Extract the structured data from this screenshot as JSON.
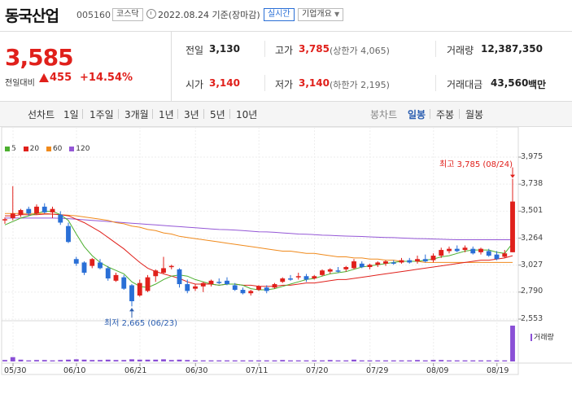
{
  "header": {
    "name": "동국산업",
    "code": "005160",
    "market": "코스닥",
    "date": "2022.08.24 기준(장마감)",
    "realtime": "실시간",
    "company_info": "기업개요"
  },
  "price": {
    "current": "3,585",
    "change_label": "전일대비",
    "change_amount": "455",
    "change_rate": "+14.54%"
  },
  "quote": {
    "prev_label": "전일",
    "prev_value": "3,130",
    "high_label": "고가",
    "high_value": "3,785",
    "upper_limit": "(상한가 4,065)",
    "volume_label": "거래량",
    "volume_value": "12,387,350",
    "open_label": "시가",
    "open_value": "3,140",
    "low_label": "저가",
    "low_value": "3,140",
    "lower_limit": "(하한가 2,195)",
    "amount_label": "거래대금",
    "amount_value": "43,560",
    "amount_unit": "백만"
  },
  "toolbar": {
    "line_chart": "선차트",
    "periods": [
      "1일",
      "1주일",
      "3개월",
      "1년",
      "3년",
      "5년",
      "10년"
    ],
    "candle_chart": "봉차트",
    "candle_periods": [
      "일봉",
      "주봉",
      "월봉"
    ],
    "selected_candle": "일봉"
  },
  "chart_data": {
    "type": "candlestick",
    "legend": [
      {
        "name": "5",
        "color": "#4caf2f"
      },
      {
        "name": "20",
        "color": "#e0201b"
      },
      {
        "name": "60",
        "color": "#f08a1c"
      },
      {
        "name": "120",
        "color": "#9457d6"
      }
    ],
    "y_ticks": [
      "3,975",
      "3,738",
      "3,501",
      "3,264",
      "3,027",
      "2,790",
      "2,553"
    ],
    "ylim": [
      2553,
      3975
    ],
    "x_ticks": [
      "05/30",
      "06/10",
      "06/21",
      "06/30",
      "07/11",
      "07/20",
      "07/29",
      "08/09",
      "08/19"
    ],
    "max_note": "최고 3,785 (08/24)",
    "min_note": "최저 2,665 (06/23)",
    "volume_label": "거래량",
    "candles": [
      {
        "o": 3420,
        "h": 3445,
        "l": 3390,
        "c": 3430
      },
      {
        "o": 3440,
        "h": 3720,
        "l": 3420,
        "c": 3480
      },
      {
        "o": 3470,
        "h": 3520,
        "l": 3450,
        "c": 3510
      },
      {
        "o": 3520,
        "h": 3540,
        "l": 3460,
        "c": 3480
      },
      {
        "o": 3480,
        "h": 3560,
        "l": 3470,
        "c": 3540
      },
      {
        "o": 3540,
        "h": 3570,
        "l": 3480,
        "c": 3490
      },
      {
        "o": 3490,
        "h": 3540,
        "l": 3440,
        "c": 3520
      },
      {
        "o": 3470,
        "h": 3500,
        "l": 3380,
        "c": 3400
      },
      {
        "o": 3370,
        "h": 3400,
        "l": 3220,
        "c": 3230
      },
      {
        "o": 3080,
        "h": 3100,
        "l": 3020,
        "c": 3040
      },
      {
        "o": 3050,
        "h": 3060,
        "l": 2940,
        "c": 2960
      },
      {
        "o": 3020,
        "h": 3090,
        "l": 3000,
        "c": 3080
      },
      {
        "o": 3050,
        "h": 3080,
        "l": 2990,
        "c": 3000
      },
      {
        "o": 3000,
        "h": 3020,
        "l": 2890,
        "c": 2910
      },
      {
        "o": 2890,
        "h": 2960,
        "l": 2880,
        "c": 2940
      },
      {
        "o": 2920,
        "h": 2940,
        "l": 2810,
        "c": 2820
      },
      {
        "o": 2850,
        "h": 2860,
        "l": 2665,
        "c": 2710
      },
      {
        "o": 2760,
        "h": 2900,
        "l": 2750,
        "c": 2870
      },
      {
        "o": 2800,
        "h": 2940,
        "l": 2790,
        "c": 2920
      },
      {
        "o": 2930,
        "h": 2990,
        "l": 2880,
        "c": 2980
      },
      {
        "o": 2960,
        "h": 3100,
        "l": 2950,
        "c": 3000
      },
      {
        "o": 3010,
        "h": 3030,
        "l": 2990,
        "c": 3020
      },
      {
        "o": 2990,
        "h": 3000,
        "l": 2830,
        "c": 2860
      },
      {
        "o": 2860,
        "h": 2900,
        "l": 2780,
        "c": 2800
      },
      {
        "o": 2820,
        "h": 2860,
        "l": 2800,
        "c": 2840
      },
      {
        "o": 2840,
        "h": 2880,
        "l": 2790,
        "c": 2870
      },
      {
        "o": 2860,
        "h": 2900,
        "l": 2840,
        "c": 2890
      },
      {
        "o": 2880,
        "h": 2910,
        "l": 2860,
        "c": 2870
      },
      {
        "o": 2890,
        "h": 2920,
        "l": 2850,
        "c": 2860
      },
      {
        "o": 2850,
        "h": 2870,
        "l": 2800,
        "c": 2810
      },
      {
        "o": 2810,
        "h": 2830,
        "l": 2770,
        "c": 2780
      },
      {
        "o": 2780,
        "h": 2810,
        "l": 2760,
        "c": 2800
      },
      {
        "o": 2810,
        "h": 2850,
        "l": 2800,
        "c": 2840
      },
      {
        "o": 2830,
        "h": 2850,
        "l": 2780,
        "c": 2800
      },
      {
        "o": 2830,
        "h": 2870,
        "l": 2820,
        "c": 2860
      },
      {
        "o": 2880,
        "h": 2920,
        "l": 2870,
        "c": 2910
      },
      {
        "o": 2910,
        "h": 2940,
        "l": 2890,
        "c": 2900
      },
      {
        "o": 2920,
        "h": 2960,
        "l": 2900,
        "c": 2930
      },
      {
        "o": 2930,
        "h": 2950,
        "l": 2880,
        "c": 2900
      },
      {
        "o": 2910,
        "h": 2940,
        "l": 2900,
        "c": 2930
      },
      {
        "o": 2940,
        "h": 2990,
        "l": 2930,
        "c": 2980
      },
      {
        "o": 2970,
        "h": 3000,
        "l": 2950,
        "c": 2990
      },
      {
        "o": 2980,
        "h": 3010,
        "l": 2960,
        "c": 2970
      },
      {
        "o": 2990,
        "h": 3020,
        "l": 2970,
        "c": 3010
      },
      {
        "o": 3000,
        "h": 3080,
        "l": 2990,
        "c": 3060
      },
      {
        "o": 3040,
        "h": 3060,
        "l": 3000,
        "c": 3010
      },
      {
        "o": 3010,
        "h": 3040,
        "l": 2990,
        "c": 3030
      },
      {
        "o": 3030,
        "h": 3060,
        "l": 3010,
        "c": 3050
      },
      {
        "o": 3040,
        "h": 3070,
        "l": 3020,
        "c": 3060
      },
      {
        "o": 3050,
        "h": 3070,
        "l": 3030,
        "c": 3040
      },
      {
        "o": 3050,
        "h": 3090,
        "l": 3040,
        "c": 3070
      },
      {
        "o": 3070,
        "h": 3090,
        "l": 3040,
        "c": 3050
      },
      {
        "o": 3060,
        "h": 3110,
        "l": 3040,
        "c": 3080
      },
      {
        "o": 3080,
        "h": 3120,
        "l": 3050,
        "c": 3060
      },
      {
        "o": 3070,
        "h": 3130,
        "l": 3050,
        "c": 3110
      },
      {
        "o": 3110,
        "h": 3180,
        "l": 3090,
        "c": 3160
      },
      {
        "o": 3150,
        "h": 3190,
        "l": 3130,
        "c": 3170
      },
      {
        "o": 3170,
        "h": 3200,
        "l": 3140,
        "c": 3150
      },
      {
        "o": 3160,
        "h": 3200,
        "l": 3140,
        "c": 3180
      },
      {
        "o": 3170,
        "h": 3190,
        "l": 3120,
        "c": 3130
      },
      {
        "o": 3140,
        "h": 3180,
        "l": 3120,
        "c": 3170
      },
      {
        "o": 3150,
        "h": 3170,
        "l": 3100,
        "c": 3110
      },
      {
        "o": 3120,
        "h": 3150,
        "l": 3070,
        "c": 3080
      },
      {
        "o": 3100,
        "h": 3160,
        "l": 3090,
        "c": 3130
      },
      {
        "o": 3140,
        "h": 3785,
        "l": 3140,
        "c": 3585
      }
    ],
    "ma5": [
      3380,
      3410,
      3440,
      3460,
      3480,
      3500,
      3500,
      3470,
      3420,
      3300,
      3190,
      3110,
      3050,
      3010,
      2980,
      2950,
      2880,
      2840,
      2830,
      2860,
      2900,
      2930,
      2940,
      2930,
      2900,
      2880,
      2860,
      2850,
      2860,
      2860,
      2850,
      2820,
      2810,
      2810,
      2820,
      2840,
      2860,
      2880,
      2900,
      2910,
      2930,
      2950,
      2960,
      2970,
      2990,
      3010,
      3020,
      3030,
      3040,
      3050,
      3060,
      3060,
      3060,
      3070,
      3080,
      3100,
      3110,
      3130,
      3150,
      3160,
      3160,
      3160,
      3140,
      3130,
      3220
    ],
    "ma20": [
      3460,
      3460,
      3470,
      3470,
      3470,
      3475,
      3475,
      3470,
      3460,
      3430,
      3400,
      3360,
      3320,
      3270,
      3220,
      3170,
      3110,
      3050,
      3000,
      2970,
      2950,
      2930,
      2910,
      2880,
      2860,
      2860,
      2860,
      2850,
      2860,
      2860,
      2850,
      2850,
      2840,
      2840,
      2840,
      2850,
      2850,
      2860,
      2870,
      2870,
      2880,
      2890,
      2900,
      2900,
      2910,
      2920,
      2930,
      2940,
      2950,
      2960,
      2970,
      2980,
      2990,
      3000,
      3010,
      3020,
      3030,
      3040,
      3050,
      3060,
      3070,
      3070,
      3080,
      3090,
      3110
    ],
    "ma60": [
      3480,
      3480,
      3480,
      3480,
      3480,
      3480,
      3475,
      3470,
      3465,
      3460,
      3450,
      3440,
      3430,
      3420,
      3400,
      3390,
      3370,
      3360,
      3340,
      3330,
      3310,
      3300,
      3280,
      3270,
      3260,
      3250,
      3240,
      3230,
      3220,
      3210,
      3200,
      3190,
      3180,
      3170,
      3160,
      3150,
      3150,
      3140,
      3130,
      3130,
      3120,
      3110,
      3100,
      3100,
      3090,
      3090,
      3080,
      3080,
      3070,
      3070,
      3060,
      3060,
      3060,
      3050,
      3050,
      3050,
      3050,
      3050,
      3050,
      3050,
      3050,
      3050,
      3050,
      3050,
      3050
    ],
    "ma120": [
      3440,
      3440,
      3440,
      3440,
      3440,
      3440,
      3440,
      3438,
      3435,
      3430,
      3425,
      3420,
      3415,
      3410,
      3405,
      3400,
      3395,
      3390,
      3385,
      3380,
      3375,
      3370,
      3365,
      3360,
      3355,
      3350,
      3345,
      3340,
      3338,
      3335,
      3330,
      3325,
      3320,
      3318,
      3315,
      3310,
      3305,
      3300,
      3298,
      3295,
      3290,
      3288,
      3285,
      3282,
      3280,
      3278,
      3275,
      3272,
      3270,
      3268,
      3265,
      3262,
      3260,
      3258,
      3256,
      3254,
      3252,
      3250,
      3250,
      3250,
      3250,
      3250,
      3250,
      3250,
      3250
    ],
    "volume": [
      0.04,
      0.12,
      0.05,
      0.03,
      0.04,
      0.04,
      0.03,
      0.04,
      0.05,
      0.06,
      0.05,
      0.04,
      0.04,
      0.05,
      0.04,
      0.04,
      0.06,
      0.05,
      0.05,
      0.05,
      0.06,
      0.04,
      0.05,
      0.04,
      0.03,
      0.03,
      0.03,
      0.03,
      0.03,
      0.03,
      0.03,
      0.03,
      0.03,
      0.03,
      0.03,
      0.04,
      0.03,
      0.03,
      0.03,
      0.03,
      0.03,
      0.04,
      0.03,
      0.03,
      0.05,
      0.03,
      0.03,
      0.03,
      0.03,
      0.03,
      0.03,
      0.03,
      0.04,
      0.03,
      0.04,
      0.04,
      0.03,
      0.03,
      0.03,
      0.03,
      0.03,
      0.03,
      0.03,
      0.03,
      1.0
    ]
  }
}
